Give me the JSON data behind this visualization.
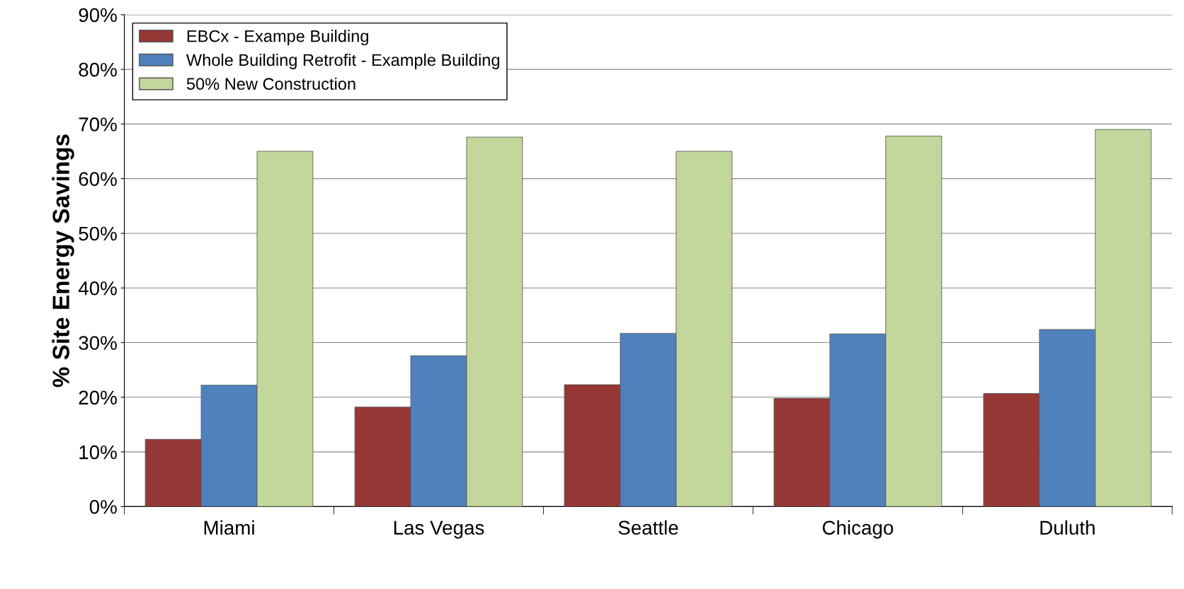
{
  "chart_data": {
    "type": "bar",
    "ylabel": "% Site Energy Savings",
    "categories": [
      "Miami",
      "Las Vegas",
      "Seattle",
      "Chicago",
      "Duluth"
    ],
    "series": [
      {
        "name": "EBCx - Exampe Building",
        "color": "#953735",
        "values": [
          12.3,
          18.2,
          22.3,
          19.8,
          20.7
        ]
      },
      {
        "name": "Whole Building Retrofit - Example Building",
        "color": "#4f81bd",
        "values": [
          22.2,
          27.6,
          31.7,
          31.6,
          32.4
        ]
      },
      {
        "name": "50% New Construction",
        "color": "#c3d69b",
        "values": [
          65.0,
          67.6,
          65.0,
          67.8,
          69.0
        ]
      }
    ],
    "ylim": [
      0,
      90
    ],
    "yticks": [
      {
        "value": 0,
        "label": "0%"
      },
      {
        "value": 10,
        "label": "10%"
      },
      {
        "value": 20,
        "label": "20%"
      },
      {
        "value": 30,
        "label": "30%"
      },
      {
        "value": 40,
        "label": "40%"
      },
      {
        "value": 50,
        "label": "50%"
      },
      {
        "value": 60,
        "label": "60%"
      },
      {
        "value": 70,
        "label": "70%"
      },
      {
        "value": 80,
        "label": "80%"
      },
      {
        "value": 90,
        "label": "90%"
      }
    ],
    "grid": "y",
    "legend": "top left"
  }
}
